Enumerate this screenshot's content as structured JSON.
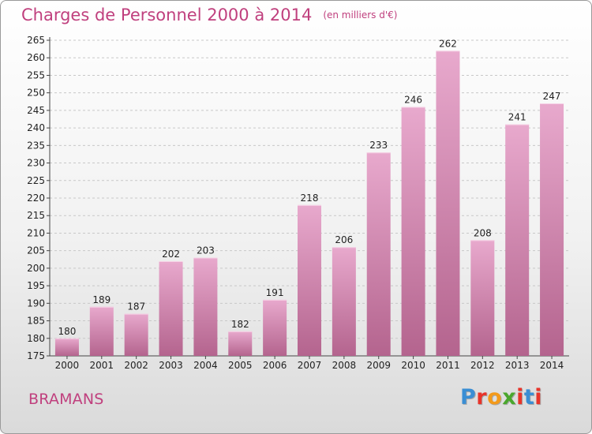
{
  "title": "Charges de Personnel 2000 à 2014",
  "unit_note": "(en milliers d'€)",
  "town": "BRAMANS",
  "logo": {
    "letters": [
      "P",
      "r",
      "o",
      "x",
      "i",
      "t",
      "i"
    ],
    "colors": [
      "#3a8ed4",
      "#e8342a",
      "#f39a1b",
      "#4aa72d",
      "#e8342a",
      "#3a8ed4",
      "#e8342a"
    ]
  },
  "colors": {
    "bar_top": "#e8a9cd",
    "bar_bottom": "#b4648e",
    "title": "#c0407e",
    "grid": "#c8c8c8"
  },
  "chart_data": {
    "type": "bar",
    "title": "Charges de Personnel 2000 à 2014",
    "subtitle": "(en milliers d'€)",
    "xlabel": "",
    "ylabel": "",
    "categories": [
      "2000",
      "2001",
      "2002",
      "2003",
      "2004",
      "2005",
      "2006",
      "2007",
      "2008",
      "2009",
      "2010",
      "2011",
      "2012",
      "2013",
      "2014"
    ],
    "values": [
      180,
      189,
      187,
      202,
      203,
      182,
      191,
      218,
      206,
      233,
      246,
      262,
      208,
      241,
      247
    ],
    "ylim": [
      175,
      265
    ],
    "ytick_step": 5,
    "grid": true,
    "legend": "none"
  }
}
